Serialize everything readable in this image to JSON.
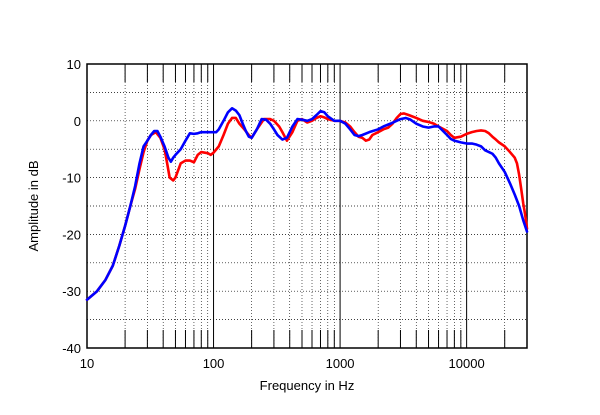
{
  "chart_data": {
    "type": "line",
    "xlabel": "Frequency in Hz",
    "ylabel": "Amplitude in dB",
    "xscale": "log",
    "xlim": [
      10,
      30000
    ],
    "ylim": [
      -40,
      10
    ],
    "x_ticks": [
      {
        "value": 10,
        "label": "10"
      },
      {
        "value": 100,
        "label": "100"
      },
      {
        "value": 1000,
        "label": "1000"
      },
      {
        "value": 10000,
        "label": "10000"
      }
    ],
    "y_ticks": [
      {
        "value": 10,
        "label": "10"
      },
      {
        "value": 0,
        "label": "0"
      },
      {
        "value": -10,
        "label": "-10"
      },
      {
        "value": -20,
        "label": "-20"
      },
      {
        "value": -30,
        "label": "-30"
      },
      {
        "value": -40,
        "label": "-40"
      }
    ],
    "grid": true,
    "series": [
      {
        "color": "#ff0000",
        "points": [
          [
            10,
            -31.5
          ],
          [
            12,
            -30
          ],
          [
            14,
            -28
          ],
          [
            16,
            -25.5
          ],
          [
            18,
            -22
          ],
          [
            20,
            -18.5
          ],
          [
            22,
            -15
          ],
          [
            24,
            -12
          ],
          [
            26,
            -8.5
          ],
          [
            28,
            -5.5
          ],
          [
            30,
            -3.5
          ],
          [
            32,
            -2.5
          ],
          [
            35,
            -2
          ],
          [
            38,
            -3
          ],
          [
            41,
            -5
          ],
          [
            43,
            -7.5
          ],
          [
            45,
            -10
          ],
          [
            48,
            -10.5
          ],
          [
            50,
            -10
          ],
          [
            55,
            -7.5
          ],
          [
            60,
            -7
          ],
          [
            65,
            -7
          ],
          [
            70,
            -7.3
          ],
          [
            75,
            -6
          ],
          [
            80,
            -5.5
          ],
          [
            90,
            -5.7
          ],
          [
            95,
            -6
          ],
          [
            100,
            -5.6
          ],
          [
            110,
            -4.5
          ],
          [
            120,
            -2.5
          ],
          [
            130,
            -0.5
          ],
          [
            140,
            0.5
          ],
          [
            150,
            0.5
          ],
          [
            160,
            -0.5
          ],
          [
            175,
            -1.5
          ],
          [
            190,
            -2.5
          ],
          [
            200,
            -3
          ],
          [
            220,
            -1.5
          ],
          [
            250,
            0.3
          ],
          [
            280,
            0.3
          ],
          [
            300,
            0
          ],
          [
            330,
            -1
          ],
          [
            350,
            -2
          ],
          [
            380,
            -3.5
          ],
          [
            420,
            -2
          ],
          [
            460,
            0
          ],
          [
            500,
            0.3
          ],
          [
            550,
            -0.3
          ],
          [
            600,
            0
          ],
          [
            650,
            0.5
          ],
          [
            700,
            0.8
          ],
          [
            750,
            0.6
          ],
          [
            800,
            0.3
          ],
          [
            900,
            0
          ],
          [
            1000,
            0
          ],
          [
            1100,
            -0.3
          ],
          [
            1200,
            -1
          ],
          [
            1300,
            -2
          ],
          [
            1400,
            -2.8
          ],
          [
            1500,
            -3
          ],
          [
            1600,
            -3.5
          ],
          [
            1700,
            -3.3
          ],
          [
            1800,
            -2.5
          ],
          [
            2000,
            -2
          ],
          [
            2200,
            -1.5
          ],
          [
            2400,
            -1.2
          ],
          [
            2600,
            -0.5
          ],
          [
            2800,
            0.5
          ],
          [
            3000,
            1.2
          ],
          [
            3200,
            1.3
          ],
          [
            3500,
            1
          ],
          [
            4000,
            0.5
          ],
          [
            4500,
            0
          ],
          [
            5000,
            -0.2
          ],
          [
            5500,
            -0.5
          ],
          [
            6000,
            -1
          ],
          [
            7000,
            -1.8
          ],
          [
            7500,
            -2.5
          ],
          [
            8000,
            -3
          ],
          [
            9000,
            -2.8
          ],
          [
            10000,
            -2.3
          ],
          [
            11000,
            -2
          ],
          [
            12000,
            -1.8
          ],
          [
            13000,
            -1.7
          ],
          [
            14000,
            -1.8
          ],
          [
            15000,
            -2.2
          ],
          [
            16000,
            -2.8
          ],
          [
            17000,
            -3.3
          ],
          [
            18000,
            -3.8
          ],
          [
            20000,
            -4.5
          ],
          [
            22000,
            -5.5
          ],
          [
            24000,
            -6.5
          ],
          [
            25000,
            -7.5
          ],
          [
            26000,
            -9.5
          ],
          [
            27000,
            -12
          ],
          [
            28000,
            -14.5
          ],
          [
            29000,
            -16.5
          ],
          [
            30000,
            -19
          ]
        ]
      },
      {
        "color": "#0000ff",
        "points": [
          [
            10,
            -31.5
          ],
          [
            12,
            -30
          ],
          [
            14,
            -28
          ],
          [
            16,
            -25.5
          ],
          [
            18,
            -22
          ],
          [
            20,
            -18.5
          ],
          [
            22,
            -15
          ],
          [
            24,
            -11.5
          ],
          [
            26,
            -7.5
          ],
          [
            28,
            -4.5
          ],
          [
            30,
            -3.5
          ],
          [
            32,
            -2.5
          ],
          [
            34,
            -1.8
          ],
          [
            36,
            -1.8
          ],
          [
            38,
            -2.8
          ],
          [
            41,
            -4.5
          ],
          [
            44,
            -6.5
          ],
          [
            46,
            -7.2
          ],
          [
            48,
            -6.5
          ],
          [
            50,
            -6
          ],
          [
            55,
            -5
          ],
          [
            60,
            -3.5
          ],
          [
            65,
            -2.2
          ],
          [
            70,
            -2.3
          ],
          [
            75,
            -2.2
          ],
          [
            80,
            -2
          ],
          [
            90,
            -2
          ],
          [
            100,
            -2
          ],
          [
            105,
            -2
          ],
          [
            110,
            -1.5
          ],
          [
            120,
            0
          ],
          [
            130,
            1.5
          ],
          [
            140,
            2.2
          ],
          [
            150,
            1.8
          ],
          [
            160,
            1
          ],
          [
            170,
            -0.5
          ],
          [
            180,
            -1.8
          ],
          [
            190,
            -2.8
          ],
          [
            200,
            -3
          ],
          [
            220,
            -1.5
          ],
          [
            240,
            0.3
          ],
          [
            260,
            0.2
          ],
          [
            280,
            -0.5
          ],
          [
            300,
            -1.5
          ],
          [
            320,
            -2.5
          ],
          [
            350,
            -3.3
          ],
          [
            380,
            -3
          ],
          [
            420,
            -1
          ],
          [
            460,
            0.3
          ],
          [
            500,
            0.2
          ],
          [
            550,
            0
          ],
          [
            600,
            0.3
          ],
          [
            650,
            1
          ],
          [
            700,
            1.7
          ],
          [
            750,
            1.5
          ],
          [
            800,
            0.8
          ],
          [
            900,
            0
          ],
          [
            1000,
            0
          ],
          [
            1100,
            -0.5
          ],
          [
            1200,
            -1.5
          ],
          [
            1300,
            -2.5
          ],
          [
            1400,
            -2.7
          ],
          [
            1500,
            -2.5
          ],
          [
            1700,
            -2
          ],
          [
            2000,
            -1.5
          ],
          [
            2200,
            -1
          ],
          [
            2500,
            -0.5
          ],
          [
            3000,
            0.3
          ],
          [
            3300,
            0.5
          ],
          [
            3600,
            0.2
          ],
          [
            4000,
            -0.5
          ],
          [
            4500,
            -1
          ],
          [
            5000,
            -1.2
          ],
          [
            5500,
            -1
          ],
          [
            6000,
            -1
          ],
          [
            7000,
            -2.5
          ],
          [
            7500,
            -3.2
          ],
          [
            8000,
            -3.5
          ],
          [
            9000,
            -3.8
          ],
          [
            10000,
            -4
          ],
          [
            11000,
            -4
          ],
          [
            12000,
            -4.2
          ],
          [
            13000,
            -4.5
          ],
          [
            14000,
            -5.2
          ],
          [
            15000,
            -5.5
          ],
          [
            16000,
            -5.8
          ],
          [
            17000,
            -6.5
          ],
          [
            18000,
            -7.5
          ],
          [
            20000,
            -9
          ],
          [
            22000,
            -11
          ],
          [
            24000,
            -13
          ],
          [
            26000,
            -15
          ],
          [
            28000,
            -17.5
          ],
          [
            30000,
            -19.5
          ]
        ]
      }
    ]
  }
}
